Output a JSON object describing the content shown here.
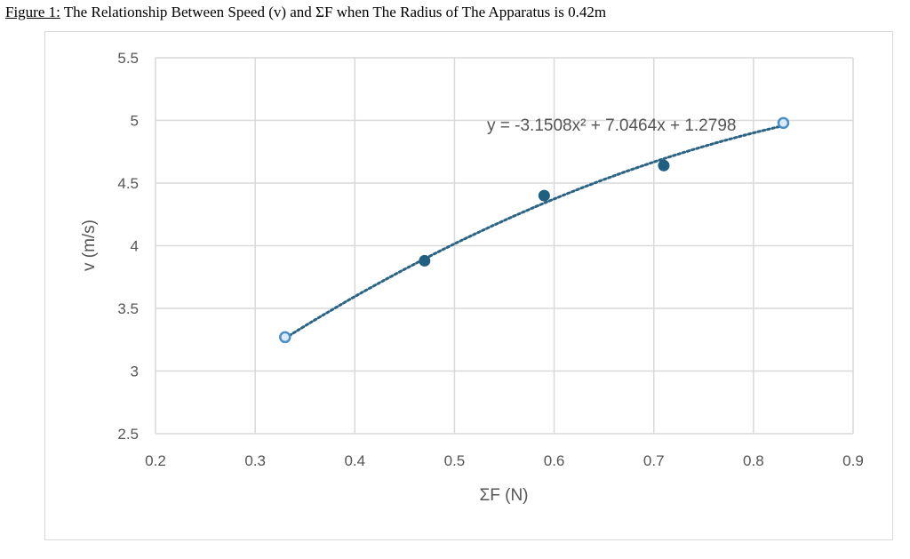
{
  "caption": {
    "label": "Figure 1:",
    "text": " The Relationship Between Speed (v) and ΣF when The Radius of The Apparatus is 0.42m"
  },
  "chart_data": {
    "type": "scatter",
    "title": "",
    "xlabel": "ΣF (N)",
    "ylabel": "v (m/s)",
    "xlim": [
      0.2,
      0.9
    ],
    "ylim": [
      2.5,
      5.5
    ],
    "x_ticks": [
      "0.2",
      "0.3",
      "0.4",
      "0.5",
      "0.6",
      "0.7",
      "0.8",
      "0.9"
    ],
    "y_ticks": [
      "2.5",
      "3",
      "3.5",
      "4",
      "4.5",
      "5",
      "5.5"
    ],
    "grid": true,
    "points": [
      {
        "x": 0.33,
        "y": 3.27
      },
      {
        "x": 0.47,
        "y": 3.88
      },
      {
        "x": 0.59,
        "y": 4.4
      },
      {
        "x": 0.71,
        "y": 4.64
      },
      {
        "x": 0.83,
        "y": 4.98
      }
    ],
    "trendline": {
      "type": "polynomial",
      "order": 2,
      "coefficients": [
        -3.1508,
        7.0464,
        1.2798
      ],
      "equation": "y = -3.1508x² + 7.0464x + 1.2798",
      "style": "dotted"
    },
    "colors": {
      "point": "#1f5f80",
      "endpoint": "#4a90c8",
      "trendline": "#2b6384",
      "grid": "#d9d9d9"
    }
  }
}
